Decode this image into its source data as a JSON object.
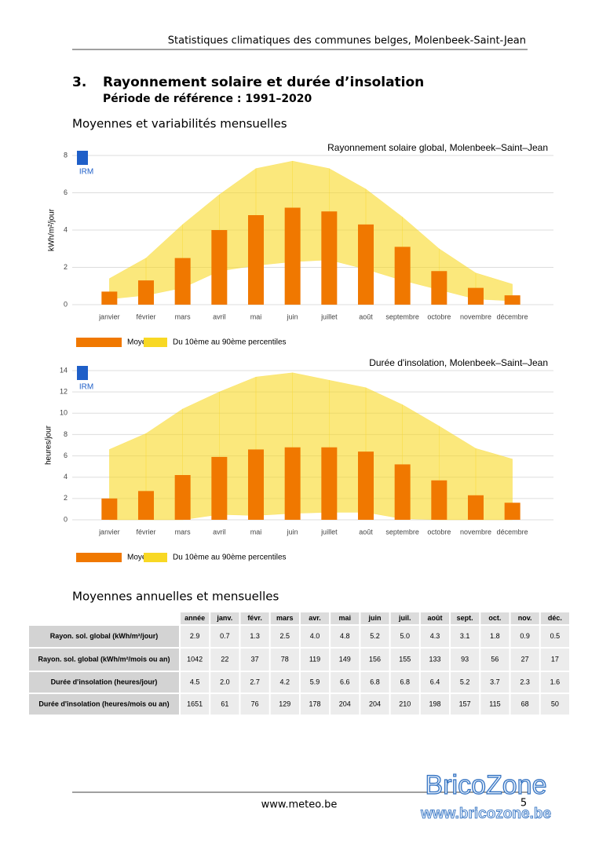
{
  "header": {
    "title": "Statistiques climatiques des communes belges, Molenbeek-Saint-Jean"
  },
  "section": {
    "number": "3.",
    "title": "Rayonnement solaire et durée d’insolation",
    "subtitle": "Période de référence : 1991–2020"
  },
  "subsections": [
    "Moyennes et variabilités mensuelles",
    "Moyennes annuelles et mensuelles"
  ],
  "chart_data": [
    {
      "type": "bar",
      "title": "Rayonnement solaire global, Molenbeek–Saint–Jean",
      "logo": "IRM",
      "y_label": "kWh/m²/jour",
      "categories": [
        "janvier",
        "février",
        "mars",
        "avril",
        "mai",
        "juin",
        "juillet",
        "août",
        "septembre",
        "octobre",
        "novembre",
        "décembre"
      ],
      "series": [
        {
          "name": "Moyenne",
          "color": "#f07800",
          "values": [
            0.7,
            1.3,
            2.5,
            4.0,
            4.8,
            5.2,
            5.0,
            4.3,
            3.1,
            1.8,
            0.9,
            0.5
          ]
        },
        {
          "name": "Du 10ème au 90ème percentiles",
          "color": "#f8d824",
          "lower": [
            0.3,
            0.5,
            0.9,
            1.8,
            2.1,
            2.3,
            2.4,
            1.9,
            1.3,
            0.8,
            0.3,
            0.2
          ],
          "upper": [
            1.4,
            2.5,
            4.3,
            5.9,
            7.3,
            7.7,
            7.3,
            6.2,
            4.7,
            3.0,
            1.7,
            1.1
          ]
        }
      ],
      "ylim": [
        0,
        8
      ],
      "yticks": [
        0,
        2,
        4,
        6,
        8
      ],
      "grid": true
    },
    {
      "type": "bar",
      "title": "Durée d'insolation, Molenbeek–Saint–Jean",
      "logo": "IRM",
      "y_label": "heures/jour",
      "categories": [
        "janvier",
        "février",
        "mars",
        "avril",
        "mai",
        "juin",
        "juillet",
        "août",
        "septembre",
        "octobre",
        "novembre",
        "décembre"
      ],
      "series": [
        {
          "name": "Moyenne",
          "color": "#f07800",
          "values": [
            2.0,
            2.7,
            4.2,
            5.9,
            6.6,
            6.8,
            6.8,
            6.4,
            5.2,
            3.7,
            2.3,
            1.6
          ]
        },
        {
          "name": "Du 10ème au 90ème percentiles",
          "color": "#f8d824",
          "lower": [
            0,
            0,
            0,
            0.5,
            0.4,
            0.6,
            0.7,
            0.7,
            0.1,
            0,
            0,
            0
          ],
          "upper": [
            6.6,
            8.1,
            10.4,
            12.0,
            13.4,
            13.8,
            13.1,
            12.4,
            10.8,
            8.8,
            6.7,
            5.7
          ]
        }
      ],
      "ylim": [
        0,
        14
      ],
      "yticks": [
        0,
        2,
        4,
        6,
        8,
        10,
        12,
        14
      ],
      "grid": true
    }
  ],
  "table": {
    "columns": [
      "année",
      "janv.",
      "févr.",
      "mars",
      "avr.",
      "mai",
      "juin",
      "juil.",
      "août",
      "sept.",
      "oct.",
      "nov.",
      "déc."
    ],
    "rows": [
      {
        "label": "Rayon. sol. global (kWh/m²/jour)",
        "cells": [
          "2.9",
          "0.7",
          "1.3",
          "2.5",
          "4.0",
          "4.8",
          "5.2",
          "5.0",
          "4.3",
          "3.1",
          "1.8",
          "0.9",
          "0.5"
        ]
      },
      {
        "label": "Rayon. sol. global (kWh/m²/mois ou an)",
        "cells": [
          "1042",
          "22",
          "37",
          "78",
          "119",
          "149",
          "156",
          "155",
          "133",
          "93",
          "56",
          "27",
          "17"
        ]
      },
      {
        "label": "Durée d'insolation (heures/jour)",
        "cells": [
          "4.5",
          "2.0",
          "2.7",
          "4.2",
          "5.9",
          "6.6",
          "6.8",
          "6.8",
          "6.4",
          "5.2",
          "3.7",
          "2.3",
          "1.6"
        ]
      },
      {
        "label": "Durée d'insolation (heures/mois ou an)",
        "cells": [
          "1651",
          "61",
          "76",
          "129",
          "178",
          "204",
          "204",
          "210",
          "198",
          "157",
          "115",
          "68",
          "50"
        ]
      }
    ]
  },
  "footer": {
    "url": "www.meteo.be",
    "page": "5"
  },
  "watermark": {
    "name": "BricoZone",
    "url": "www.bricozone.be"
  }
}
